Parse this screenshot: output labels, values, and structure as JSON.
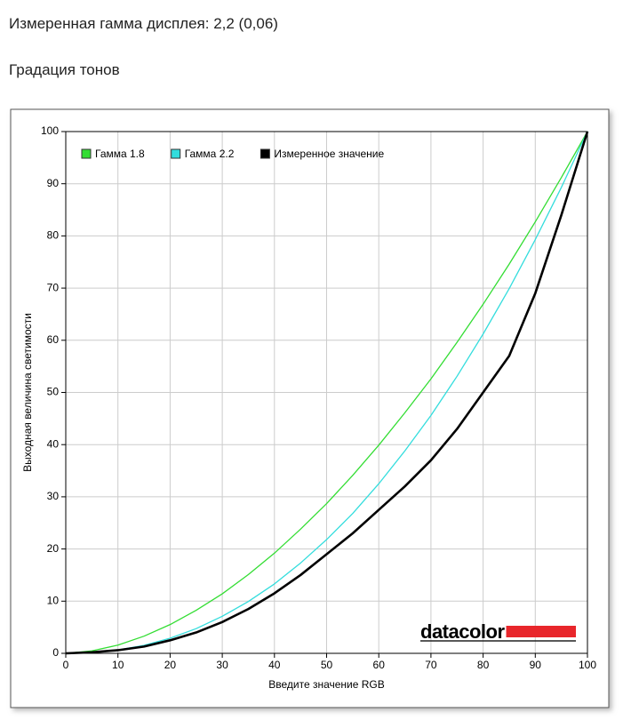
{
  "header": {
    "title": "Измеренная гамма дисплея: 2,2 (0,06)",
    "subtitle": "Градация тонов"
  },
  "chart_data": {
    "type": "line",
    "x": [
      0,
      5,
      10,
      15,
      20,
      25,
      30,
      35,
      40,
      45,
      50,
      55,
      60,
      65,
      70,
      75,
      80,
      85,
      90,
      95,
      100
    ],
    "series": [
      {
        "name": "Гамма 1.8",
        "color": "#33dd33",
        "width": 1.3,
        "values": [
          0,
          0.46,
          1.58,
          3.29,
          5.51,
          8.25,
          11.4,
          15.1,
          19.2,
          23.8,
          28.7,
          34.1,
          39.9,
          46.1,
          52.6,
          59.6,
          66.9,
          74.6,
          82.7,
          91.2,
          100
        ]
      },
      {
        "name": "Гамма 2.2",
        "color": "#33dddd",
        "width": 1.3,
        "values": [
          0,
          0.14,
          0.63,
          1.54,
          2.9,
          4.74,
          7.1,
          9.93,
          13.3,
          17.3,
          21.8,
          26.8,
          32.5,
          38.8,
          45.6,
          53.1,
          61.2,
          69.9,
          79.3,
          89.3,
          100
        ]
      },
      {
        "name": "Измеренное значение",
        "color": "#000000",
        "width": 2.6,
        "values": [
          0,
          0.2,
          0.6,
          1.3,
          2.5,
          4,
          6,
          8.5,
          11.5,
          15,
          19,
          23,
          27.5,
          32,
          37,
          43,
          50,
          57,
          69,
          84,
          100
        ]
      }
    ],
    "xlabel": "Введите значение RGB",
    "ylabel": "Выходная величина светимости",
    "xlim": [
      0,
      100
    ],
    "ylim": [
      0,
      100
    ],
    "xticks": [
      0,
      10,
      20,
      30,
      40,
      50,
      60,
      70,
      80,
      90,
      100
    ],
    "yticks": [
      0,
      10,
      20,
      30,
      40,
      50,
      60,
      70,
      80,
      90,
      100
    ],
    "grid": true,
    "legend": "top-left",
    "logo": "datacolor"
  }
}
